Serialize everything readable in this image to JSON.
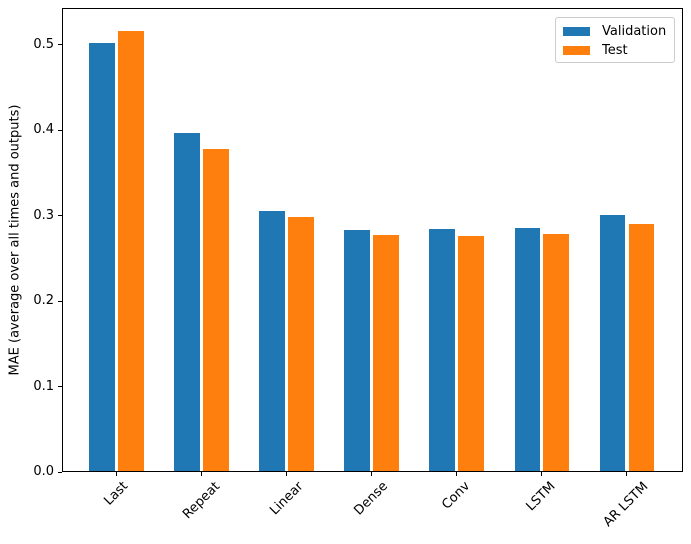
{
  "chart_data": {
    "type": "bar",
    "categories": [
      "Last",
      "Repeat",
      "Linear",
      "Dense",
      "Conv",
      "LSTM",
      "AR LSTM"
    ],
    "series": [
      {
        "name": "Validation",
        "color": "#1f77b4",
        "values": [
          0.501,
          0.396,
          0.305,
          0.282,
          0.283,
          0.285,
          0.3
        ]
      },
      {
        "name": "Test",
        "color": "#ff7f0e",
        "values": [
          0.515,
          0.377,
          0.297,
          0.276,
          0.275,
          0.278,
          0.289
        ]
      }
    ],
    "title": "",
    "xlabel": "",
    "ylabel": "MAE (average over all times and outputs)",
    "ytick_labels": [
      "0.0",
      "0.1",
      "0.2",
      "0.3",
      "0.4",
      "0.5"
    ],
    "yticks": [
      0.0,
      0.1,
      0.2,
      0.3,
      0.4,
      0.5
    ],
    "ylim": [
      0,
      0.5433
    ],
    "xlim": [
      -0.64,
      6.66
    ],
    "bar_width": 0.3,
    "bar_offsets": [
      -0.17,
      0.17
    ],
    "x_tick_rotation": 45,
    "legend_position": "upper right",
    "grid": false,
    "spine_color": "#000000",
    "legend_border_color": "#cccccc"
  }
}
